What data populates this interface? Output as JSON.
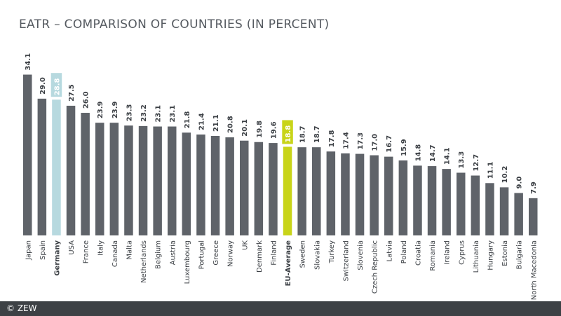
{
  "title": "EATR – COMPARISON OF COUNTRIES (IN PERCENT)",
  "copyright": "© ZEW",
  "colors": {
    "default_bar": "#5f6369",
    "germany_bar": "#b7d9df",
    "eu_bar": "#c8d419",
    "label_text": "#3c4045"
  },
  "chart_data": {
    "type": "bar",
    "title": "EATR – COMPARISON OF COUNTRIES (IN PERCENT)",
    "xlabel": "",
    "ylabel": "",
    "ylim": [
      0,
      35
    ],
    "grid": false,
    "categories": [
      "Japan",
      "Spain",
      "Germany",
      "USA",
      "France",
      "Italy",
      "Canada",
      "Malta",
      "Netherlands",
      "Belgium",
      "Austria",
      "Luxembourg",
      "Portugal",
      "Greece",
      "Norway",
      "UK",
      "Denmark",
      "Finland",
      "EU-Average",
      "Sweden",
      "Slovakia",
      "Turkey",
      "Switzerland",
      "Slovenia",
      "Czech Republic",
      "Latvia",
      "Poland",
      "Croatia",
      "Romania",
      "Ireland",
      "Cyprus",
      "Lithuania",
      "Hungary",
      "Estonia",
      "Bulgaria",
      "North Macedonia"
    ],
    "values": [
      34.1,
      29.0,
      28.8,
      27.5,
      26.0,
      23.9,
      23.9,
      23.3,
      23.2,
      23.1,
      23.1,
      21.8,
      21.4,
      21.1,
      20.8,
      20.1,
      19.8,
      19.6,
      18.8,
      18.7,
      18.7,
      17.8,
      17.4,
      17.3,
      17.0,
      16.7,
      15.9,
      14.8,
      14.7,
      14.1,
      13.3,
      12.7,
      11.1,
      10.2,
      9.0,
      7.9
    ],
    "value_labels": [
      "34.1",
      "29.0",
      "28.8",
      "27.5",
      "26.0",
      "23.9",
      "23.9",
      "23.3",
      "23.2",
      "23.1",
      "23.1",
      "21.8",
      "21.4",
      "21.1",
      "20.8",
      "20.1",
      "19.8",
      "19.6",
      "18.8",
      "18.7",
      "18.7",
      "17.8",
      "17.4",
      "17.3",
      "17.0",
      "16.7",
      "15.9",
      "14.8",
      "14.7",
      "14.1",
      "13.3",
      "12.7",
      "11.1",
      "10.2",
      "9.0",
      "7.9"
    ],
    "highlights": {
      "Germany": "germany",
      "EU-Average": "eu"
    }
  }
}
